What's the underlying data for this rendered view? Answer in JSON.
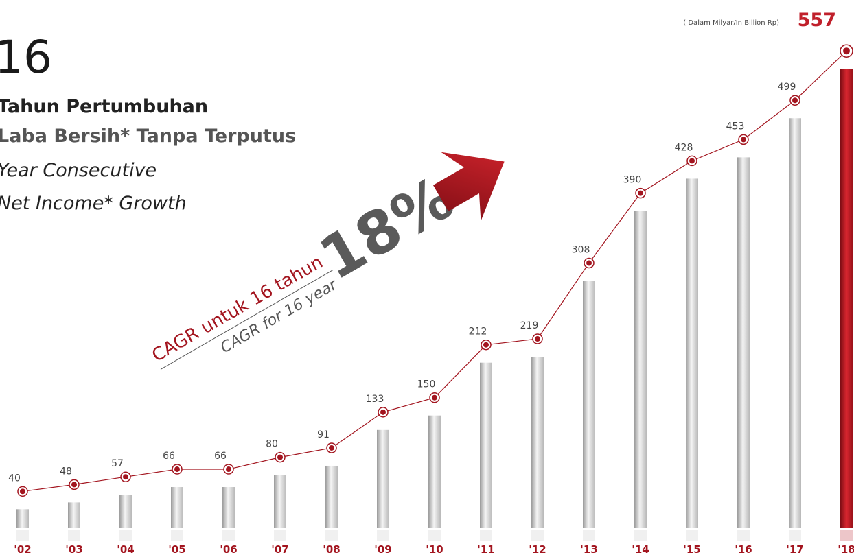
{
  "chart_data": {
    "type": "bar-line",
    "headline": "16",
    "subtitle_lines": [
      "Tahun Pertumbuhan",
      "Laba Bersih* Tanpa Terputus",
      "Year Consecutive",
      "Net Income* Growth"
    ],
    "cagr_label": "CAGR untuk 16 tahun",
    "cagr_label_en": "CAGR for 16 year",
    "cagr_value": "18%",
    "unit_note": "( Dalam Milyar/In Billion Rp)",
    "categories": [
      "'02",
      "'03",
      "'04",
      "'05",
      "'06",
      "'07",
      "'08",
      "'09",
      "'10",
      "'11",
      "'12",
      "'13",
      "'14",
      "'15",
      "'16",
      "'17",
      "'18"
    ],
    "values": [
      40,
      48,
      57,
      66,
      66,
      80,
      91,
      133,
      150,
      212,
      219,
      308,
      390,
      428,
      453,
      499,
      557
    ],
    "color": "#a3151f",
    "highlight_color": "#c0202b"
  }
}
